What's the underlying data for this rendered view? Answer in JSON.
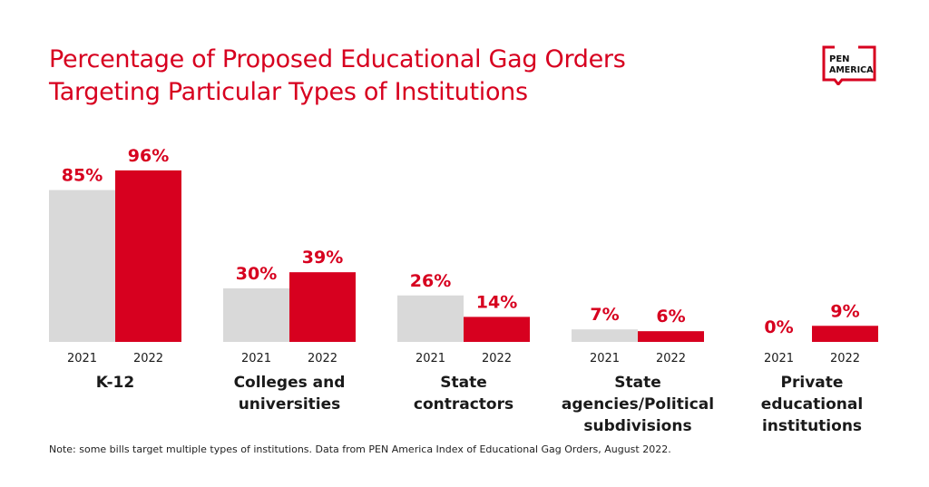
{
  "title_lines": [
    "Percentage of Proposed Educational Gag Orders",
    "Targeting Particular Types of Institutions"
  ],
  "logo_text": [
    "PEN",
    "AMERICA"
  ],
  "note": "Note: some bills target multiple types of institutions. Data from PEN America Index of Educational Gag Orders, August 2022.",
  "colors": {
    "accent": "#d7001f",
    "gray": "#d9d9d9",
    "text": "#1a1a1a"
  },
  "chart_data": {
    "type": "bar",
    "title": "Percentage of Proposed Educational Gag Orders Targeting Particular Types of Institutions",
    "categories": [
      "K-12",
      "Colleges and universities",
      "State contractors",
      "State agencies/Political subdivisions",
      "Private educational institutions"
    ],
    "category_lines": [
      [
        "K-12"
      ],
      [
        "Colleges and",
        "universities"
      ],
      [
        "State",
        "contractors"
      ],
      [
        "State",
        "agencies/Political",
        "subdivisions"
      ],
      [
        "Private",
        "educational",
        "institutions"
      ]
    ],
    "series": [
      {
        "name": "2021",
        "values": [
          85,
          30,
          26,
          7,
          0
        ],
        "labels": [
          "85%",
          "30%",
          "26%",
          "7%",
          "0%"
        ],
        "color": "#d9d9d9"
      },
      {
        "name": "2022",
        "values": [
          96,
          39,
          14,
          6,
          9
        ],
        "labels": [
          "96%",
          "39%",
          "14%",
          "6%",
          "9%"
        ],
        "color": "#d7001f"
      }
    ],
    "ylim": [
      0,
      100
    ],
    "grid": false,
    "legend": "none"
  }
}
